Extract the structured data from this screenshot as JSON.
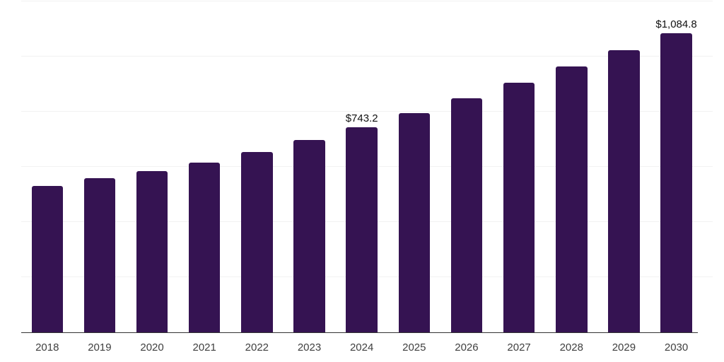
{
  "chart_data": {
    "type": "bar",
    "title": "",
    "xlabel": "",
    "ylabel": "",
    "categories": [
      "2018",
      "2019",
      "2020",
      "2021",
      "2022",
      "2023",
      "2024",
      "2025",
      "2026",
      "2027",
      "2028",
      "2029",
      "2030"
    ],
    "values": [
      531,
      558,
      584,
      615,
      654,
      698,
      743.2,
      795,
      849,
      906,
      965,
      1023,
      1084.8
    ],
    "data_labels": [
      "",
      "",
      "",
      "",
      "",
      "",
      "$743.2",
      "",
      "",
      "",
      "",
      "",
      "$1,084.8"
    ],
    "ylim": [
      0,
      1200
    ],
    "gridline_step": 200,
    "grid": true,
    "legend_position": "none",
    "y_axis_labels_visible": false,
    "colors": {
      "bar": "#351352",
      "axis_line": "#333333",
      "gridline": "#f2f2f2",
      "tick_label": "#3f3f3f",
      "data_label": "#111111",
      "background": "#ffffff"
    }
  }
}
